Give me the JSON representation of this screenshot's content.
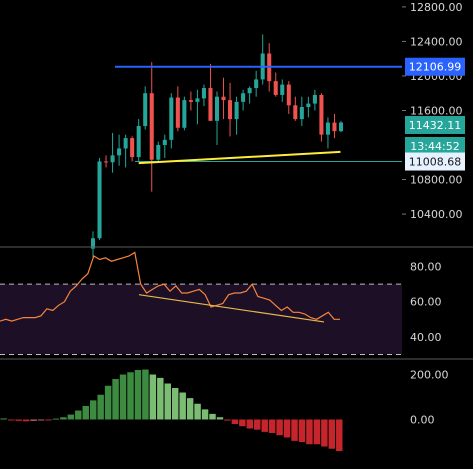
{
  "chart_data": [
    {
      "type": "candlestick",
      "name_ref": "price",
      "y_ticks": [
        "12800.00",
        "12400.00",
        "12000.00",
        "11600.00",
        "10800.00",
        "10400.00"
      ],
      "y_tick_values": [
        12800,
        12400,
        12000,
        11600,
        10800,
        10400
      ],
      "ylim": [
        10030,
        12880
      ],
      "colors": {
        "up": "#26a69a",
        "down": "#ef5350",
        "resistance": "#2962ff",
        "support_trend": "#ffeb3b",
        "support_line": "#26a69a"
      },
      "levels": [
        {
          "label": "12106.99",
          "value": 12106.99,
          "bg": "#2962ff",
          "fg": "#ffffff"
        },
        {
          "label": "11432.11",
          "value": 11432.11,
          "bg": "#26a69a",
          "fg": "#ffffff"
        },
        {
          "label": "13:44:52",
          "value": 11300,
          "bg": "#26a69a",
          "fg": "#ffffff"
        },
        {
          "label": "11008.68",
          "value": 11008.68,
          "bg": "#e6f2ff",
          "fg": "#1a1a1a"
        }
      ],
      "candles": [
        {
          "o": 10000,
          "h": 10200,
          "l": 9900,
          "c": 10120
        },
        {
          "o": 10120,
          "h": 11050,
          "l": 10100,
          "c": 11010
        },
        {
          "o": 11010,
          "h": 11080,
          "l": 10940,
          "c": 11000
        },
        {
          "o": 11000,
          "h": 11340,
          "l": 10880,
          "c": 11080
        },
        {
          "o": 11080,
          "h": 11320,
          "l": 10960,
          "c": 11160
        },
        {
          "o": 11160,
          "h": 11320,
          "l": 10940,
          "c": 11280
        },
        {
          "o": 11280,
          "h": 11300,
          "l": 11010,
          "c": 11060
        },
        {
          "o": 11060,
          "h": 11500,
          "l": 11010,
          "c": 11420
        },
        {
          "o": 11420,
          "h": 11880,
          "l": 11380,
          "c": 11800
        },
        {
          "o": 11800,
          "h": 12160,
          "l": 10660,
          "c": 11030
        },
        {
          "o": 11030,
          "h": 11240,
          "l": 11010,
          "c": 11200
        },
        {
          "o": 11200,
          "h": 11320,
          "l": 11050,
          "c": 11260
        },
        {
          "o": 11260,
          "h": 11800,
          "l": 11160,
          "c": 11750
        },
        {
          "o": 11750,
          "h": 11880,
          "l": 11360,
          "c": 11400
        },
        {
          "o": 11400,
          "h": 11760,
          "l": 11370,
          "c": 11720
        },
        {
          "o": 11720,
          "h": 11820,
          "l": 11600,
          "c": 11700
        },
        {
          "o": 11700,
          "h": 11840,
          "l": 11440,
          "c": 11740
        },
        {
          "o": 11740,
          "h": 11900,
          "l": 11650,
          "c": 11860
        },
        {
          "o": 11860,
          "h": 12140,
          "l": 11480,
          "c": 11480
        },
        {
          "o": 11480,
          "h": 11820,
          "l": 11200,
          "c": 11760
        },
        {
          "o": 11760,
          "h": 11980,
          "l": 11500,
          "c": 11720
        },
        {
          "o": 11720,
          "h": 11920,
          "l": 11300,
          "c": 11500
        },
        {
          "o": 11500,
          "h": 11760,
          "l": 11320,
          "c": 11700
        },
        {
          "o": 11700,
          "h": 11840,
          "l": 11600,
          "c": 11800
        },
        {
          "o": 11800,
          "h": 11880,
          "l": 11680,
          "c": 11860
        },
        {
          "o": 11860,
          "h": 12060,
          "l": 11760,
          "c": 11960
        },
        {
          "o": 11960,
          "h": 12480,
          "l": 11900,
          "c": 12260
        },
        {
          "o": 12260,
          "h": 12380,
          "l": 11820,
          "c": 11940
        },
        {
          "o": 11940,
          "h": 12040,
          "l": 11760,
          "c": 11780
        },
        {
          "o": 11780,
          "h": 11960,
          "l": 11700,
          "c": 11900
        },
        {
          "o": 11900,
          "h": 11940,
          "l": 11560,
          "c": 11660
        },
        {
          "o": 11660,
          "h": 11760,
          "l": 11480,
          "c": 11500
        },
        {
          "o": 11500,
          "h": 11760,
          "l": 11420,
          "c": 11640
        },
        {
          "o": 11640,
          "h": 11760,
          "l": 11520,
          "c": 11680
        },
        {
          "o": 11680,
          "h": 11840,
          "l": 11600,
          "c": 11780
        },
        {
          "o": 11780,
          "h": 11800,
          "l": 11240,
          "c": 11320
        },
        {
          "o": 11320,
          "h": 11520,
          "l": 11160,
          "c": 11460
        },
        {
          "o": 11460,
          "h": 11560,
          "l": 11280,
          "c": 11360
        },
        {
          "o": 11360,
          "h": 11480,
          "l": 11350,
          "c": 11460
        }
      ]
    },
    {
      "type": "line",
      "name_ref": "rsi",
      "y_ticks": [
        "80.00",
        "60.00",
        "40.00"
      ],
      "y_tick_values": [
        80,
        60,
        40
      ],
      "ylim": [
        28,
        90
      ],
      "bands": [
        70,
        30
      ],
      "band_fill": "#1c0f26",
      "line_color": "#f6843c",
      "trend_color": "#e8b94a",
      "values": [
        49,
        50,
        49,
        50,
        51,
        51,
        51,
        52,
        56,
        55,
        58,
        60,
        66,
        69,
        73,
        76,
        86,
        84,
        85,
        83,
        84,
        85,
        86,
        88,
        70,
        65,
        67,
        69,
        70,
        66,
        69,
        65,
        65,
        66,
        67,
        64,
        57,
        58,
        59,
        64,
        65,
        65,
        66,
        70,
        63,
        62,
        61,
        58,
        55,
        57,
        54,
        54,
        53,
        51,
        50,
        52,
        54,
        50,
        50
      ]
    },
    {
      "type": "bar",
      "name_ref": "momentum",
      "y_ticks": [
        "200.00",
        "0.00"
      ],
      "y_tick_values": [
        200,
        0
      ],
      "ylim": [
        -220,
        260
      ],
      "colors": {
        "pos_strong": "#3d8a41",
        "pos_weak": "#7cbd74",
        "neg_strong": "#c5252b",
        "neg_weak": "#b56a6e"
      },
      "values": [
        5,
        -4,
        -6,
        -8,
        -6,
        -2,
        -4,
        4,
        10,
        22,
        40,
        60,
        85,
        110,
        150,
        180,
        200,
        210,
        220,
        222,
        200,
        185,
        160,
        140,
        120,
        95,
        70,
        45,
        25,
        10,
        -5,
        -20,
        -30,
        -40,
        -45,
        -55,
        -60,
        -70,
        -80,
        -95,
        -100,
        -110,
        -110,
        -120,
        -130,
        -140
      ]
    }
  ]
}
